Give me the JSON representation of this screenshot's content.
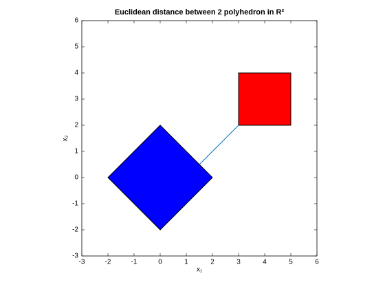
{
  "chart_data": {
    "type": "polygon",
    "title": "Euclidean distance between 2 polyhedron in R²",
    "x_label": "x₁",
    "y_label": "x₂",
    "xlim": [
      -3,
      6
    ],
    "ylim": [
      -3,
      6
    ],
    "xticks": [
      -3,
      -2,
      -1,
      0,
      1,
      2,
      3,
      4,
      5,
      6
    ],
    "yticks": [
      -3,
      -2,
      -1,
      0,
      1,
      2,
      3,
      4,
      5,
      6
    ],
    "polygons": [
      {
        "color": "#0000ff",
        "x": [
          -2,
          0,
          2,
          0
        ],
        "y": [
          0,
          2,
          0,
          -2
        ]
      },
      {
        "color": "#ff0000",
        "x": [
          3,
          5,
          5,
          3
        ],
        "y": [
          2,
          2,
          4,
          4
        ]
      }
    ],
    "segment": {
      "color": "#0072bd",
      "x": [
        1.5,
        3
      ],
      "y": [
        0.5,
        2
      ]
    }
  }
}
